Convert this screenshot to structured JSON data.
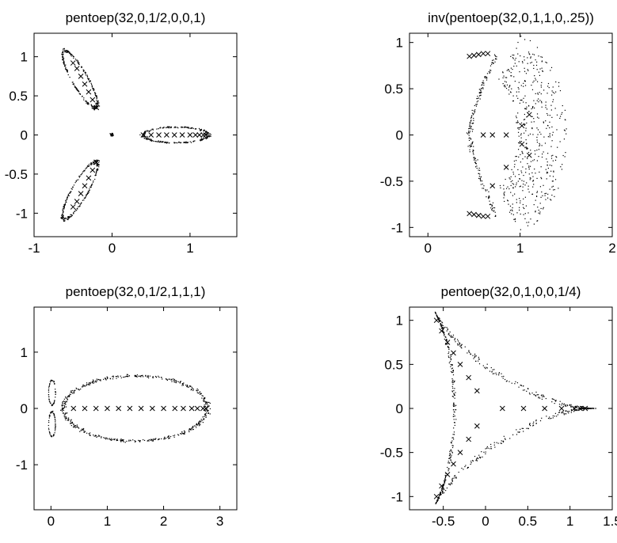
{
  "chart_data": [
    {
      "type": "scatter",
      "title": "pentoep(32,0,1/2,0,0,1)",
      "xlim": [
        -1,
        1.6
      ],
      "ylim": [
        -1.3,
        1.3
      ],
      "xticks": [
        -1,
        0,
        1
      ],
      "yticks": [
        -1,
        -0.5,
        0,
        0.5,
        1
      ],
      "xtick_labels": [
        "-1",
        "0",
        "1"
      ],
      "ytick_labels": [
        "-1",
        "-0.5",
        "0",
        "0.5",
        "1"
      ],
      "grid": false,
      "series": [
        {
          "marker": "x",
          "x": [
            0.4,
            0.5,
            0.6,
            0.7,
            0.8,
            0.9,
            1.0,
            1.07,
            1.12,
            1.17,
            1.2,
            -0.2,
            -0.25,
            -0.3,
            -0.35,
            -0.4,
            -0.45,
            -0.5,
            -0.2,
            -0.25,
            -0.3,
            -0.35,
            -0.4,
            -0.45,
            -0.5
          ],
          "y": [
            0,
            0,
            0,
            0,
            0,
            0,
            0,
            0,
            0,
            0,
            0,
            0.35,
            0.45,
            0.55,
            0.65,
            0.75,
            0.85,
            0.92,
            -0.35,
            -0.45,
            -0.55,
            -0.65,
            -0.75,
            -0.85,
            -0.92
          ]
        },
        {
          "marker": ".",
          "description": "pseudospectral dots around three lobes"
        }
      ]
    },
    {
      "type": "scatter",
      "title": "inv(pentoep(32,0,1,1,0,.25))",
      "xlim": [
        -0.2,
        2
      ],
      "ylim": [
        -1.1,
        1.1
      ],
      "xticks": [
        0,
        1,
        2
      ],
      "yticks": [
        -1,
        -0.5,
        0,
        0.5,
        1
      ],
      "xtick_labels": [
        "0",
        "1",
        "2"
      ],
      "ytick_labels": [
        "-1",
        "-0.5",
        "0",
        "0.5",
        "1"
      ],
      "grid": false,
      "series": [
        {
          "marker": "x",
          "x": [
            0.6,
            0.7,
            0.85,
            1.02,
            1.1,
            1.1,
            1.02,
            0.85,
            0.7,
            0.45,
            0.5,
            0.55,
            0.6,
            0.65,
            0.45,
            0.5,
            0.55,
            0.6,
            0.65
          ],
          "y": [
            0,
            0,
            0,
            0.1,
            0.22,
            -0.22,
            -0.1,
            -0.35,
            -0.55,
            0.85,
            0.86,
            0.87,
            0.88,
            0.88,
            -0.85,
            -0.86,
            -0.87,
            -0.88,
            -0.88
          ]
        },
        {
          "marker": ".",
          "description": "crescent-shaped cloud of dots"
        }
      ]
    },
    {
      "type": "scatter",
      "title": "pentoep(32,0,1/2,1,1,1)",
      "xlim": [
        -0.3,
        3.3
      ],
      "ylim": [
        -1.8,
        1.8
      ],
      "xticks": [
        0,
        1,
        2,
        3
      ],
      "yticks": [
        -1,
        0,
        1
      ],
      "xtick_labels": [
        "0",
        "1",
        "2",
        "3"
      ],
      "ytick_labels": [
        "-1",
        "0",
        "1"
      ],
      "grid": false,
      "series": [
        {
          "marker": "x",
          "x": [
            0.4,
            0.6,
            0.8,
            1.0,
            1.2,
            1.4,
            1.6,
            1.8,
            2.0,
            2.2,
            2.35,
            2.5,
            2.6,
            2.7,
            2.75
          ],
          "y": [
            0,
            0,
            0,
            0,
            0,
            0,
            0,
            0,
            0,
            0,
            0,
            0,
            0,
            0,
            0
          ]
        },
        {
          "marker": ".",
          "description": "large oval plus small fish-tail lobes near origin"
        }
      ]
    },
    {
      "type": "scatter",
      "title": "pentoep(32,0,1,0,0,1/4)",
      "xlim": [
        -0.9,
        1.5
      ],
      "ylim": [
        -1.15,
        1.15
      ],
      "xticks": [
        -0.5,
        0,
        0.5,
        1,
        1.5
      ],
      "yticks": [
        -1,
        -0.5,
        0,
        0.5,
        1
      ],
      "xtick_labels": [
        "-0.5",
        "0",
        "0.5",
        "1",
        "1.5"
      ],
      "ytick_labels": [
        "-1",
        "-0.5",
        "0",
        "0.5",
        "1"
      ],
      "grid": false,
      "series": [
        {
          "marker": "x",
          "x": [
            0.2,
            0.45,
            0.7,
            0.9,
            1.05,
            1.12,
            1.18,
            -0.1,
            -0.2,
            -0.3,
            -0.38,
            -0.45,
            -0.52,
            -0.58,
            -0.1,
            -0.2,
            -0.3,
            -0.38,
            -0.45,
            -0.52,
            -0.58
          ],
          "y": [
            0,
            0,
            0,
            0,
            0,
            0,
            0,
            0.2,
            0.35,
            0.5,
            0.63,
            0.75,
            0.88,
            1.0,
            -0.2,
            -0.35,
            -0.5,
            -0.63,
            -0.75,
            -0.88,
            -1.0
          ]
        },
        {
          "marker": ".",
          "description": "three-cusped deltoid-shaped cloud"
        }
      ]
    }
  ]
}
